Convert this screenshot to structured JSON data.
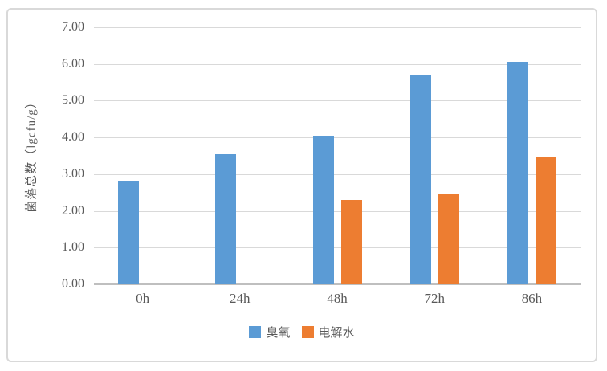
{
  "chart_data": {
    "type": "bar",
    "title": "",
    "categories": [
      "0h",
      "24h",
      "48h",
      "72h",
      "86h"
    ],
    "series": [
      {
        "name": "臭氧",
        "color": "#5B9BD5",
        "values": [
          2.8,
          3.55,
          4.05,
          5.7,
          6.05
        ]
      },
      {
        "name": "电解水",
        "color": "#ED7D31",
        "values": [
          0,
          0,
          2.3,
          2.47,
          3.48
        ]
      }
    ],
    "xlabel": "",
    "ylabel": "菌落总数（lgcfu/g）",
    "ylim": [
      0,
      7
    ],
    "y_tick_step": 1,
    "y_tick_labels": [
      "0.00",
      "1.00",
      "2.00",
      "3.00",
      "4.00",
      "5.00",
      "6.00",
      "7.00"
    ],
    "grid": true,
    "legend_position": "bottom"
  },
  "colors": {
    "series_ozone": "#5B9BD5",
    "series_electrolyzed_water": "#ED7D31",
    "gridline": "#d9d9d9",
    "axis_line": "#bfbfbf",
    "text": "#595959",
    "frame_border": "#d9d9d9",
    "background": "#ffffff"
  }
}
